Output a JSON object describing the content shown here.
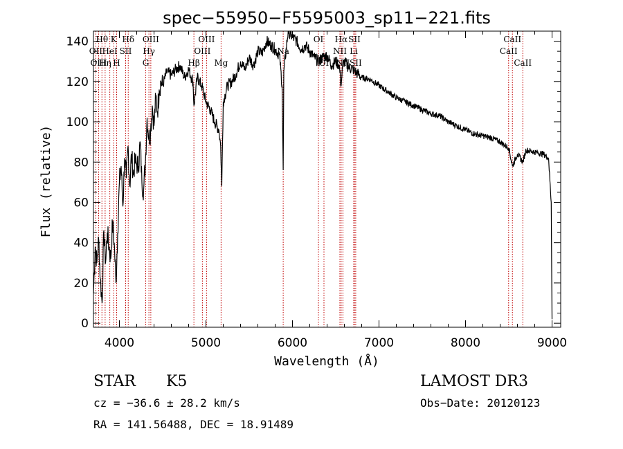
{
  "chart_data": {
    "type": "line",
    "title": "spec−55950−F5595003_sp11−221.fits",
    "xlabel": "Wavelength (Å)",
    "ylabel": "Flux (relative)",
    "xlim": [
      3700,
      9100
    ],
    "ylim": [
      -2,
      145
    ],
    "x_ticks": [
      4000,
      5000,
      6000,
      7000,
      8000,
      9000
    ],
    "y_ticks": [
      0,
      20,
      40,
      60,
      80,
      100,
      120,
      140
    ],
    "series": [
      {
        "name": "flux",
        "x": [
          3700,
          3720,
          3740,
          3760,
          3780,
          3800,
          3820,
          3840,
          3860,
          3880,
          3900,
          3920,
          3940,
          3960,
          3980,
          4000,
          4020,
          4040,
          4060,
          4080,
          4100,
          4120,
          4140,
          4160,
          4180,
          4200,
          4220,
          4240,
          4260,
          4280,
          4300,
          4320,
          4340,
          4360,
          4380,
          4400,
          4420,
          4440,
          4460,
          4480,
          4500,
          4550,
          4600,
          4650,
          4700,
          4750,
          4800,
          4850,
          4861,
          4900,
          4950,
          5000,
          5050,
          5100,
          5150,
          5170,
          5183,
          5200,
          5250,
          5300,
          5350,
          5400,
          5450,
          5500,
          5550,
          5600,
          5650,
          5700,
          5750,
          5800,
          5850,
          5880,
          5893,
          5900,
          5950,
          6000,
          6050,
          6100,
          6150,
          6200,
          6250,
          6300,
          6350,
          6400,
          6450,
          6500,
          6540,
          6563,
          6580,
          6600,
          6650,
          6700,
          6750,
          6800,
          6900,
          7000,
          7100,
          7200,
          7300,
          7400,
          7500,
          7600,
          7700,
          7800,
          7900,
          8000,
          8100,
          8200,
          8300,
          8400,
          8500,
          8542,
          8600,
          8662,
          8700,
          8800,
          8900,
          8960,
          8990,
          9000
        ],
        "values": [
          15,
          38,
          30,
          42,
          22,
          10,
          46,
          30,
          45,
          38,
          32,
          50,
          40,
          20,
          45,
          70,
          78,
          58,
          82,
          72,
          88,
          68,
          84,
          74,
          80,
          79,
          78,
          90,
          70,
          66,
          80,
          102,
          92,
          95,
          108,
          98,
          112,
          105,
          116,
          120,
          118,
          125,
          123,
          126,
          128,
          122,
          126,
          120,
          108,
          122,
          118,
          110,
          106,
          100,
          96,
          88,
          68,
          110,
          118,
          120,
          124,
          130,
          126,
          132,
          128,
          135,
          134,
          140,
          138,
          136,
          133,
          118,
          76,
          125,
          145,
          142,
          140,
          136,
          138,
          135,
          132,
          130,
          132,
          133,
          128,
          130,
          128,
          118,
          128,
          130,
          127,
          126,
          124,
          122,
          121,
          118,
          115,
          112,
          110,
          108,
          106,
          104,
          103,
          100,
          98,
          96,
          94,
          93,
          92,
          90,
          87,
          78,
          84,
          80,
          86,
          85,
          84,
          82,
          60,
          2
        ]
      }
    ],
    "line_markers": [
      {
        "label": "Hθ",
        "x": 3798,
        "row": 0
      },
      {
        "label": "OII",
        "x": 3727,
        "row": 1
      },
      {
        "label": "OIII",
        "x": 3760,
        "row": 2
      },
      {
        "label": "K",
        "x": 3934,
        "row": 0
      },
      {
        "label": "HeI",
        "x": 3889,
        "row": 1
      },
      {
        "label": "Hη",
        "x": 3835,
        "row": 2
      },
      {
        "label": "Hδ",
        "x": 4102,
        "row": 0
      },
      {
        "label": "SII",
        "x": 4072,
        "row": 1
      },
      {
        "label": "H",
        "x": 3968,
        "row": 2
      },
      {
        "label": "OIII",
        "x": 4363,
        "row": 0
      },
      {
        "label": "Hγ",
        "x": 4341,
        "row": 1
      },
      {
        "label": "G",
        "x": 4304,
        "row": 2
      },
      {
        "label": "OIII",
        "x": 5007,
        "row": 0
      },
      {
        "label": "OIII",
        "x": 4959,
        "row": 1
      },
      {
        "label": "Hβ",
        "x": 4861,
        "row": 2
      },
      {
        "label": "Mg",
        "x": 5175,
        "row": 2
      },
      {
        "label": "Na",
        "x": 5893,
        "row": 1
      },
      {
        "label": "OI",
        "x": 6300,
        "row": 0
      },
      {
        "label": "OI",
        "x": 6364,
        "row": 2
      },
      {
        "label": "Hα",
        "x": 6563,
        "row": 0
      },
      {
        "label": "SII",
        "x": 6716,
        "row": 0
      },
      {
        "label": "NII",
        "x": 6548,
        "row": 1
      },
      {
        "label": "Li",
        "x": 6708,
        "row": 1
      },
      {
        "label": "NII",
        "x": 6583,
        "row": 2
      },
      {
        "label": "SII",
        "x": 6731,
        "row": 2
      },
      {
        "label": "CaII",
        "x": 8542,
        "row": 0
      },
      {
        "label": "CaII",
        "x": 8498,
        "row": 1
      },
      {
        "label": "CaII",
        "x": 8662,
        "row": 2
      }
    ],
    "line_positions": [
      3727,
      3760,
      3798,
      3835,
      3889,
      3934,
      3968,
      4072,
      4102,
      4304,
      4341,
      4363,
      4861,
      4959,
      5007,
      5175,
      5893,
      6300,
      6364,
      6548,
      6563,
      6583,
      6708,
      6716,
      6731,
      8498,
      8542,
      8662
    ]
  },
  "info": {
    "class": "STAR",
    "subclass": "K5",
    "survey": "LAMOST DR3",
    "cz": "cz = −36.6 ± 28.2 km/s",
    "obs_date": "Obs−Date: 20120123",
    "radec": "RA = 141.56488, DEC =  18.91489"
  }
}
